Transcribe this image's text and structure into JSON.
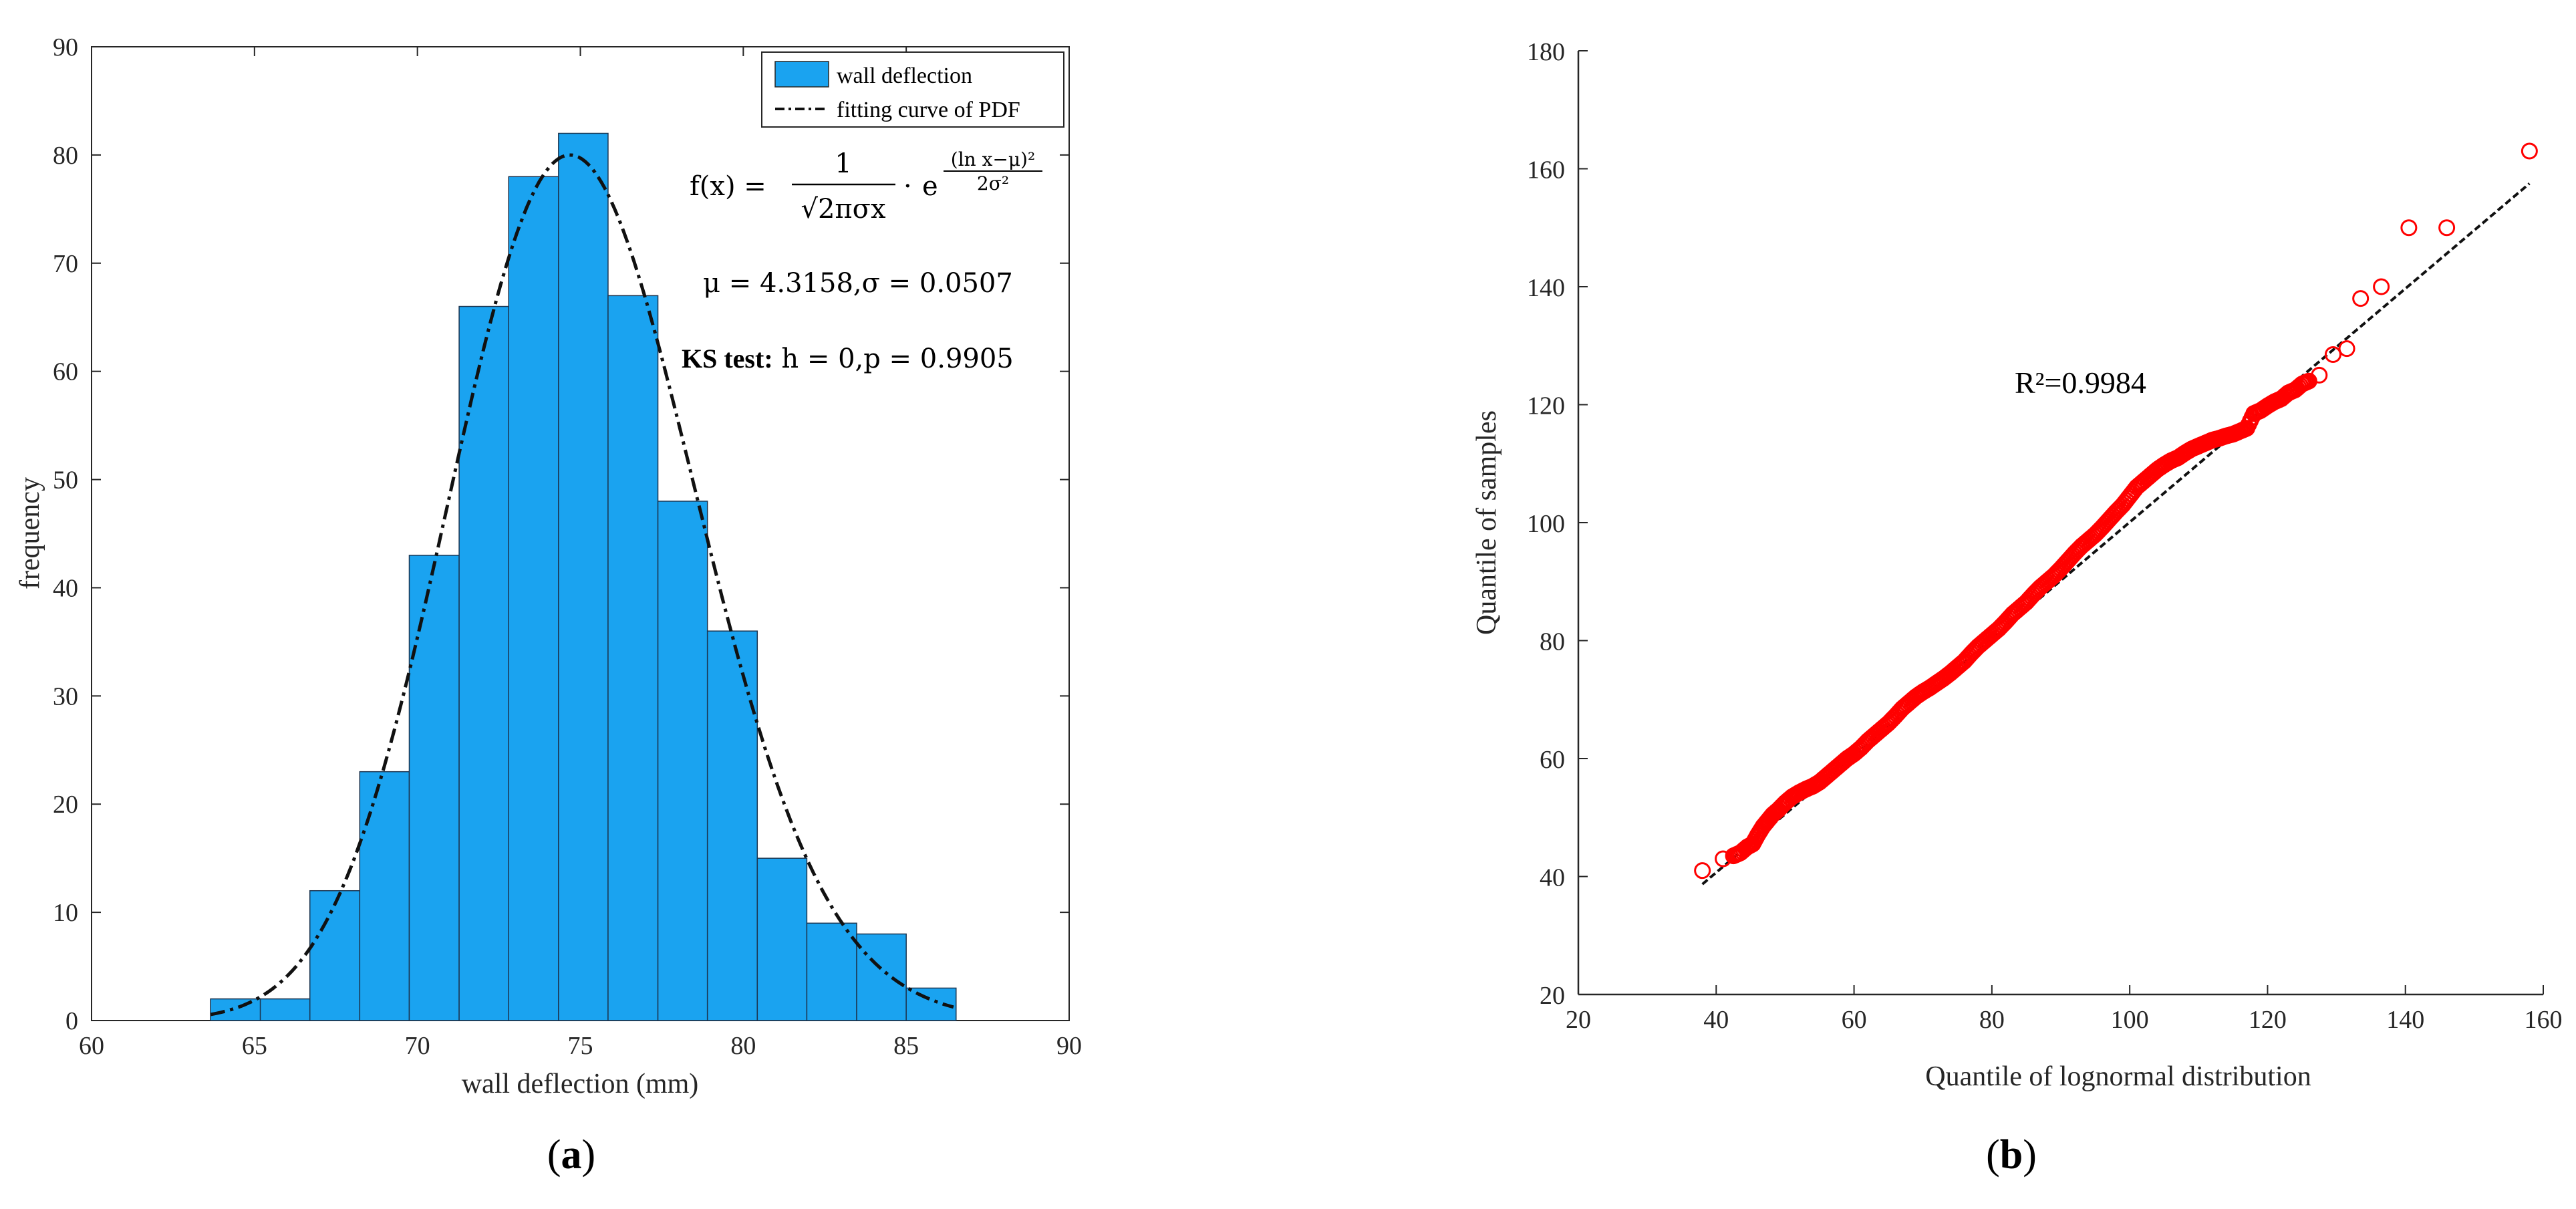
{
  "chart_data": [
    {
      "type": "bar",
      "panel_label": "a",
      "xlabel": "wall deflection (mm)",
      "ylabel": "frequency",
      "xlim": [
        60,
        90
      ],
      "ylim": [
        0,
        90
      ],
      "x_ticks": [
        60,
        65,
        70,
        75,
        80,
        85,
        90
      ],
      "y_ticks": [
        0,
        10,
        20,
        30,
        40,
        50,
        60,
        70,
        80,
        90
      ],
      "bin_edges": [
        63.65,
        65.18,
        66.7,
        68.23,
        69.75,
        71.28,
        72.8,
        74.33,
        75.85,
        77.38,
        78.9,
        80.43,
        81.95,
        83.48,
        85.0,
        86.53
      ],
      "values": [
        2,
        2,
        12,
        23,
        43,
        66,
        78,
        82,
        67,
        48,
        36,
        15,
        9,
        8,
        3
      ],
      "bar_color": "#1aa3f0",
      "legend": [
        "wall deflection",
        "fitting curve of PDF"
      ],
      "annotations": {
        "formula_lhs": "f(x) =",
        "formula_num": "1",
        "formula_den": "√2πσx",
        "formula_dot": "·",
        "formula_e": "e",
        "formula_exp_num": "(ln x−μ)²",
        "formula_exp_den": "2σ²",
        "params": "μ = 4.3158,σ = 0.0507",
        "ks_bold": "KS test:",
        "ks_rest": " h = 0,p = 0.9905"
      },
      "pdf_fit": {
        "mu": 4.3158,
        "sigma": 0.0507,
        "x_range": [
          63.65,
          86.53
        ],
        "peak": 80
      }
    },
    {
      "type": "scatter",
      "panel_label": "b",
      "xlabel": "Quantile of lognormal distribution",
      "ylabel": "Quantile of samples",
      "xlim": [
        20,
        160
      ],
      "ylim": [
        20,
        180
      ],
      "x_ticks": [
        20,
        40,
        60,
        80,
        100,
        120,
        140,
        160
      ],
      "y_ticks": [
        20,
        40,
        60,
        80,
        100,
        120,
        140,
        160,
        180
      ],
      "marker_color": "#ff0000",
      "annotation": "R²=0.9984",
      "fit_line": {
        "x": [
          38,
          158
        ],
        "y": [
          38.7,
          157.5
        ]
      },
      "points": {
        "x": [
          38,
          41,
          42.5,
          43.5,
          44.5,
          45.3,
          46,
          46.8,
          47.5,
          48.2,
          49,
          50,
          51,
          52,
          53,
          54,
          55,
          56,
          57,
          58,
          59,
          60,
          61,
          62,
          63,
          64,
          65,
          66,
          67,
          68,
          69,
          70,
          71,
          72,
          73,
          74,
          75,
          76,
          77,
          78,
          79,
          80,
          81,
          82,
          83,
          84,
          85,
          86,
          87,
          88,
          89,
          90,
          91,
          92,
          93,
          94,
          95,
          96,
          97,
          98,
          99,
          100,
          101,
          102,
          103,
          104,
          105,
          106,
          107,
          108,
          109,
          110,
          111,
          112,
          113,
          114,
          115,
          116,
          117,
          118,
          119,
          120,
          121,
          122,
          123,
          124,
          125,
          126,
          127.5,
          129.5,
          131.5,
          133.5,
          136.5,
          140.5,
          146,
          158
        ],
        "y": [
          41,
          43,
          43.5,
          44,
          45,
          45.5,
          47,
          48.5,
          49.5,
          50.5,
          51.3,
          52.5,
          53.5,
          54.2,
          54.8,
          55.3,
          56,
          57,
          58,
          59,
          60,
          60.8,
          61.8,
          63,
          64,
          65,
          66,
          67.2,
          68.5,
          69.5,
          70.5,
          71.3,
          72,
          72.8,
          73.6,
          74.5,
          75.5,
          76.5,
          77.8,
          79,
          80,
          81,
          82,
          83.2,
          84.5,
          85.5,
          86.5,
          87.8,
          89,
          90,
          91,
          92.2,
          93.5,
          94.8,
          96,
          97,
          98,
          99.2,
          100.5,
          101.8,
          103,
          104.5,
          106,
          107,
          108,
          109,
          109.8,
          110.5,
          111,
          111.8,
          112.5,
          113,
          113.5,
          114,
          114.3,
          114.7,
          115,
          115.5,
          116,
          118.5,
          119,
          119.8,
          120.5,
          121,
          122,
          122.5,
          123.5,
          124,
          125,
          128.5,
          129.5,
          138,
          140,
          150,
          150,
          163
        ]
      }
    }
  ]
}
